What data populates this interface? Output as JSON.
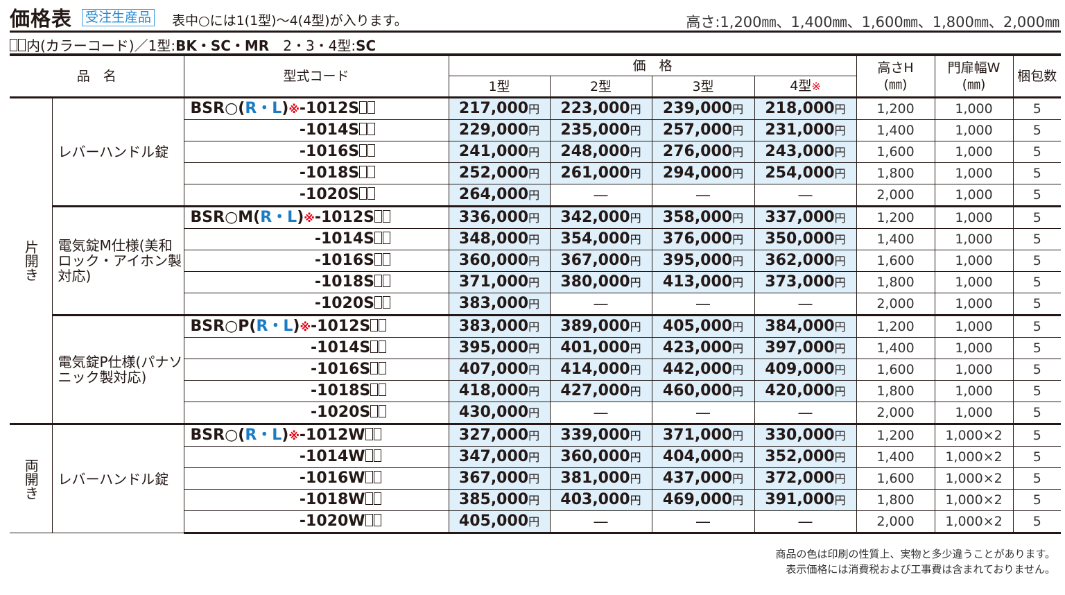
{
  "header": {
    "title": "価格表",
    "badge": "受注生産品",
    "note": "表中○には1(1型)～4(4型)が入ります。",
    "heights": "高さ:1,200㎜、1,400㎜、1,600㎜、1,800㎜、2,000㎜"
  },
  "colors_note": {
    "prefix": "内(カラーコード)／1型:",
    "type1": "BK・SC・MR",
    "sep": "　2・3・4型:",
    "type234": "SC"
  },
  "columns": {
    "name": "品　名",
    "code": "型式コード",
    "price": "価　格",
    "t1": "1型",
    "t2": "2型",
    "t3": "3型",
    "t4": "4型",
    "mark": "※",
    "height": "高さH",
    "height_unit": "(㎜)",
    "width": "門扉幅W",
    "width_unit": "(㎜)",
    "pack": "梱包数"
  },
  "yen": "円",
  "dash": "―",
  "groups": [
    {
      "opening": "片開き",
      "name": "レバーハンドル錠",
      "pre": "BSR○(",
      "rl": "R・L",
      "post": ")",
      "mark": "※",
      "rows": [
        {
          "code": "-1012S",
          "p": [
            "217,000",
            "223,000",
            "239,000",
            "218,000"
          ],
          "h": "1,200",
          "w": "1,000",
          "n": "5"
        },
        {
          "code": "-1014S",
          "p": [
            "229,000",
            "235,000",
            "257,000",
            "231,000"
          ],
          "h": "1,400",
          "w": "1,000",
          "n": "5"
        },
        {
          "code": "-1016S",
          "p": [
            "241,000",
            "248,000",
            "276,000",
            "243,000"
          ],
          "h": "1,600",
          "w": "1,000",
          "n": "5"
        },
        {
          "code": "-1018S",
          "p": [
            "252,000",
            "261,000",
            "294,000",
            "254,000"
          ],
          "h": "1,800",
          "w": "1,000",
          "n": "5"
        },
        {
          "code": "-1020S",
          "p": [
            "264,000",
            null,
            null,
            null
          ],
          "h": "2,000",
          "w": "1,000",
          "n": "5"
        }
      ]
    },
    {
      "opening": "片開き",
      "name": "電気錠M仕様(美和ロック・アイホン製対応)",
      "pre": "BSR○M(",
      "rl": "R・L",
      "post": ")",
      "mark": "※",
      "rows": [
        {
          "code": "-1012S",
          "p": [
            "336,000",
            "342,000",
            "358,000",
            "337,000"
          ],
          "h": "1,200",
          "w": "1,000",
          "n": "5"
        },
        {
          "code": "-1014S",
          "p": [
            "348,000",
            "354,000",
            "376,000",
            "350,000"
          ],
          "h": "1,400",
          "w": "1,000",
          "n": "5"
        },
        {
          "code": "-1016S",
          "p": [
            "360,000",
            "367,000",
            "395,000",
            "362,000"
          ],
          "h": "1,600",
          "w": "1,000",
          "n": "5"
        },
        {
          "code": "-1018S",
          "p": [
            "371,000",
            "380,000",
            "413,000",
            "373,000"
          ],
          "h": "1,800",
          "w": "1,000",
          "n": "5"
        },
        {
          "code": "-1020S",
          "p": [
            "383,000",
            null,
            null,
            null
          ],
          "h": "2,000",
          "w": "1,000",
          "n": "5"
        }
      ]
    },
    {
      "opening": "片開き",
      "name": "電気錠P仕様(パナソニック製対応)",
      "pre": "BSR○P(",
      "rl": "R・L",
      "post": ")",
      "mark": "※",
      "rows": [
        {
          "code": "-1012S",
          "p": [
            "383,000",
            "389,000",
            "405,000",
            "384,000"
          ],
          "h": "1,200",
          "w": "1,000",
          "n": "5"
        },
        {
          "code": "-1014S",
          "p": [
            "395,000",
            "401,000",
            "423,000",
            "397,000"
          ],
          "h": "1,400",
          "w": "1,000",
          "n": "5"
        },
        {
          "code": "-1016S",
          "p": [
            "407,000",
            "414,000",
            "442,000",
            "409,000"
          ],
          "h": "1,600",
          "w": "1,000",
          "n": "5"
        },
        {
          "code": "-1018S",
          "p": [
            "418,000",
            "427,000",
            "460,000",
            "420,000"
          ],
          "h": "1,800",
          "w": "1,000",
          "n": "5"
        },
        {
          "code": "-1020S",
          "p": [
            "430,000",
            null,
            null,
            null
          ],
          "h": "2,000",
          "w": "1,000",
          "n": "5"
        }
      ]
    },
    {
      "opening": "両開き",
      "name": "レバーハンドル錠",
      "pre": "BSR○(",
      "rl": "R・L",
      "post": ")",
      "mark": "※",
      "rows": [
        {
          "code": "-1012W",
          "p": [
            "327,000",
            "339,000",
            "371,000",
            "330,000"
          ],
          "h": "1,200",
          "w": "1,000×2",
          "n": "5"
        },
        {
          "code": "-1014W",
          "p": [
            "347,000",
            "360,000",
            "404,000",
            "352,000"
          ],
          "h": "1,400",
          "w": "1,000×2",
          "n": "5"
        },
        {
          "code": "-1016W",
          "p": [
            "367,000",
            "381,000",
            "437,000",
            "372,000"
          ],
          "h": "1,600",
          "w": "1,000×2",
          "n": "5"
        },
        {
          "code": "-1018W",
          "p": [
            "385,000",
            "403,000",
            "469,000",
            "391,000"
          ],
          "h": "1,800",
          "w": "1,000×2",
          "n": "5"
        },
        {
          "code": "-1020W",
          "p": [
            "405,000",
            null,
            null,
            null
          ],
          "h": "2,000",
          "w": "1,000×2",
          "n": "5"
        }
      ]
    }
  ],
  "footnotes": [
    "商品の色は印刷の性質上、実物と多少違うことがあります。",
    "表示価格には消費税および工事費は含まれておりません。"
  ],
  "accent_colors": {
    "badge": "#1e88d0",
    "price_bg": "#dff0fa",
    "mark": "#e60012"
  }
}
